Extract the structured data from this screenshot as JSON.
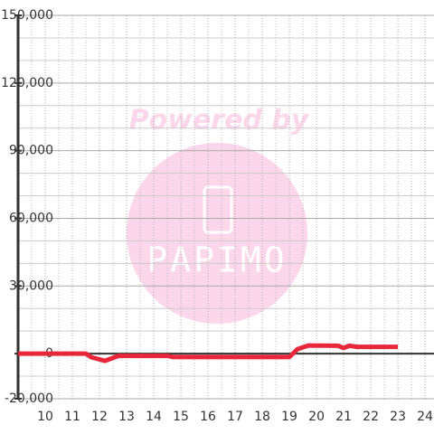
{
  "chart_data": {
    "type": "line",
    "x": [
      9,
      11.5,
      11.7,
      12.2,
      12.7,
      14.5,
      14.7,
      19,
      19.3,
      19.7,
      20.8,
      21,
      21.2,
      21.5,
      23
    ],
    "series": [
      {
        "color": "#e8283a",
        "values": [
          0,
          0,
          -1600,
          -3200,
          -1000,
          -1000,
          -1500,
          -1500,
          2000,
          3600,
          3500,
          2500,
          3500,
          3000,
          3000
        ]
      }
    ],
    "xlim": [
      9,
      24.33
    ],
    "xticks": [
      10,
      11,
      12,
      13,
      14,
      15,
      16,
      17,
      18,
      19,
      20,
      21,
      22,
      23,
      24
    ],
    "xminorticks": [
      9.5,
      10.5,
      11.5,
      12.5,
      13.5,
      14.5,
      15.5,
      16.5,
      17.5,
      18.5,
      19.5,
      20.5,
      21.5,
      22.5,
      23.5,
      24
    ],
    "ylim": [
      -20000,
      150000
    ],
    "yticks": [
      {
        "value": -20000,
        "label": "-20,000"
      },
      0,
      {
        "value": 30000,
        "label": "30,000"
      },
      {
        "value": 60000,
        "label": "60,000"
      },
      {
        "value": 90000,
        "label": "90,000"
      },
      {
        "value": 120000,
        "label": "120,000"
      },
      {
        "value": 150000,
        "label": "150,000"
      }
    ],
    "yminorticks": [
      -10000,
      10000,
      20000,
      40000,
      50000,
      70000,
      80000,
      100000,
      110000,
      130000,
      140000
    ],
    "grid": true,
    "watermark": {
      "title": "Powered by",
      "brand": "PAPIMO"
    }
  }
}
